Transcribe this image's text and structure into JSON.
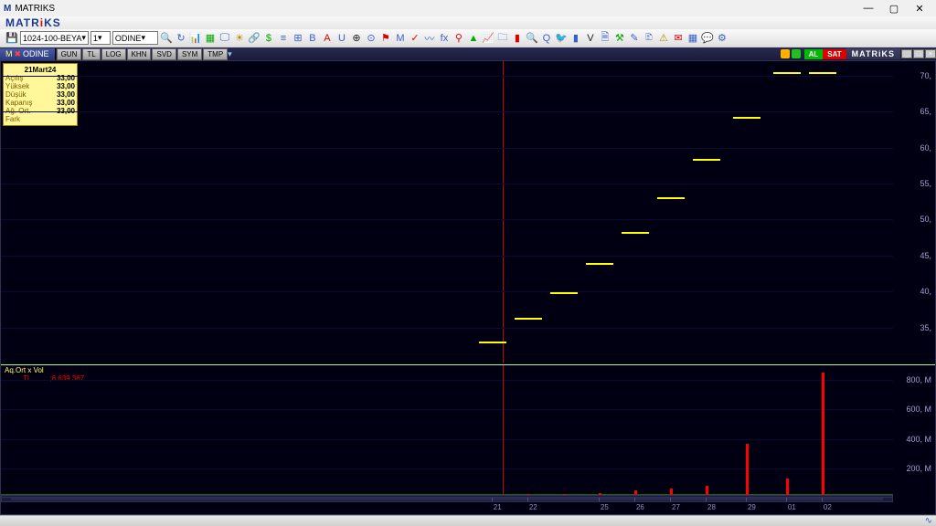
{
  "window": {
    "title": "MATRIKS"
  },
  "toolbar": {
    "dropdown1": "1024-100-BEYA",
    "dropdown2": "1",
    "dropdown3": "ODINE"
  },
  "tabbar": {
    "symbol": "ODINE",
    "buttons": [
      "GUN",
      "TL",
      "LOG",
      "KHN",
      "SVD",
      "SYM",
      "TMP"
    ],
    "al": "AL",
    "sat": "SAT",
    "brand": "MATRiKS"
  },
  "info": {
    "date": "21Mart24",
    "rows": [
      {
        "k": "Açılış",
        "v": "33,00"
      },
      {
        "k": "Yüksek",
        "v": "33,00"
      },
      {
        "k": "Düşük",
        "v": "33,00"
      },
      {
        "k": "Kapanış",
        "v": "33,00"
      },
      {
        "k": "Ağ. Ort.",
        "v": "33,00"
      },
      {
        "k": "Fark",
        "v": ""
      }
    ]
  },
  "price_chart": {
    "type": "ohlc",
    "ylim": [
      30,
      72
    ],
    "yticks": [
      35,
      40,
      45,
      50,
      55,
      60,
      65,
      70
    ],
    "ytick_suffix": ",",
    "background": "#000012",
    "grid_color": "#0c0c30",
    "bar_color": "#ffff00",
    "cursor_x_pct": 56.2,
    "bars": [
      {
        "x_pct": 55.0,
        "y": 33
      },
      {
        "x_pct": 59.0,
        "y": 36.3
      },
      {
        "x_pct": 63.0,
        "y": 39.9
      },
      {
        "x_pct": 67.0,
        "y": 43.9
      },
      {
        "x_pct": 71.0,
        "y": 48.3
      },
      {
        "x_pct": 75.0,
        "y": 53.1
      },
      {
        "x_pct": 79.0,
        "y": 58.4
      },
      {
        "x_pct": 83.5,
        "y": 64.2
      },
      {
        "x_pct": 88.0,
        "y": 70.5
      },
      {
        "x_pct": 92.0,
        "y": 70.5
      }
    ]
  },
  "volume_chart": {
    "label1": "Aq.Ort x Vol",
    "label2_prefix": "TL",
    "label2_value": ";8.639.367",
    "ylim": [
      0,
      900
    ],
    "yticks": [
      200,
      400,
      600,
      800
    ],
    "ytick_suffix": ", M",
    "bar_color": "#ff0000",
    "baseline_color": "#0a6a0a",
    "bars": [
      {
        "x_pct": 55.0,
        "v": 0
      },
      {
        "x_pct": 59.0,
        "v": 4
      },
      {
        "x_pct": 63.0,
        "v": 6
      },
      {
        "x_pct": 67.0,
        "v": 15
      },
      {
        "x_pct": 71.0,
        "v": 30
      },
      {
        "x_pct": 75.0,
        "v": 45
      },
      {
        "x_pct": 79.0,
        "v": 60
      },
      {
        "x_pct": 83.5,
        "v": 350
      },
      {
        "x_pct": 88.0,
        "v": 110
      },
      {
        "x_pct": 92.0,
        "v": 830
      }
    ]
  },
  "date_axis": {
    "ticks": [
      {
        "x_pct": 55.0,
        "label": "21"
      },
      {
        "x_pct": 59.0,
        "label": "22"
      },
      {
        "x_pct": 67.0,
        "label": "25"
      },
      {
        "x_pct": 71.0,
        "label": "26"
      },
      {
        "x_pct": 75.0,
        "label": "27"
      },
      {
        "x_pct": 79.0,
        "label": "28"
      },
      {
        "x_pct": 83.5,
        "label": "29"
      },
      {
        "x_pct": 88.0,
        "label": "01"
      },
      {
        "x_pct": 92.0,
        "label": "02"
      }
    ]
  },
  "colors": {
    "accent_blue": "#1b3a8f",
    "accent_red": "#e00000"
  }
}
